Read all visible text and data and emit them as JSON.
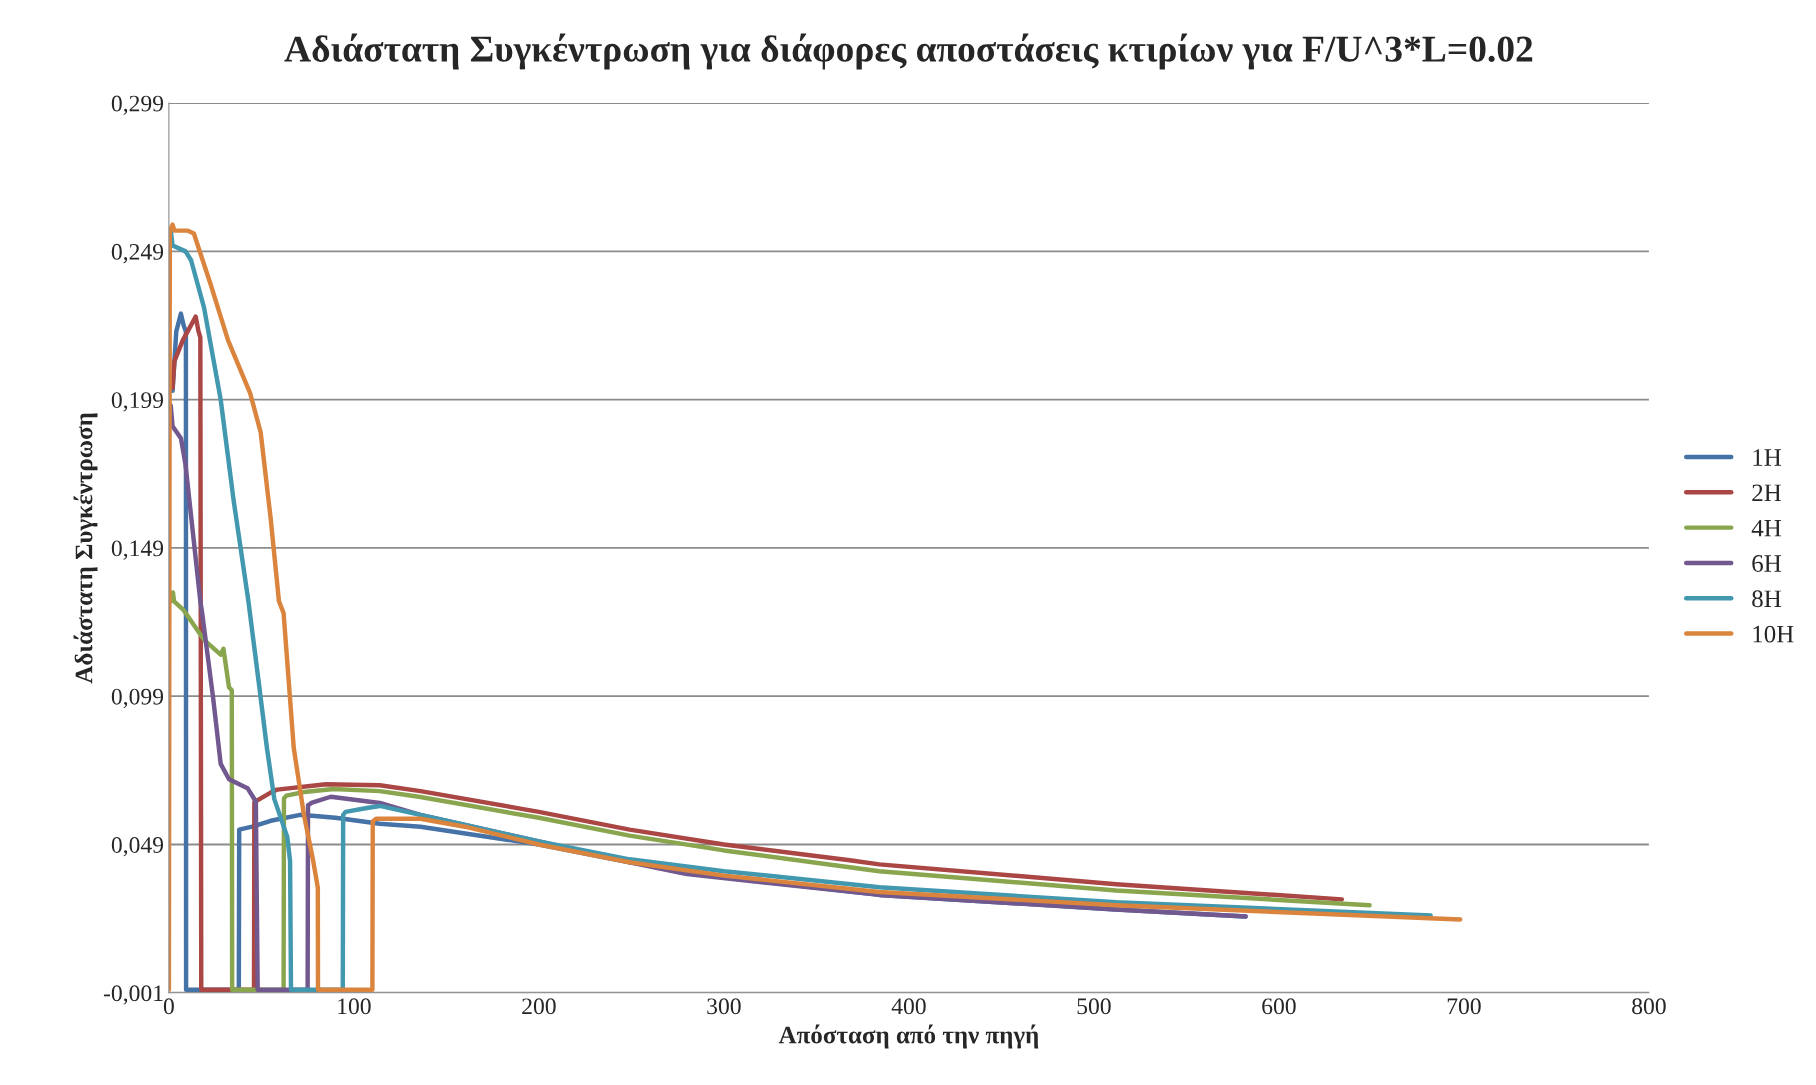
{
  "chart_data": {
    "type": "line",
    "title": "Αδιάστατη Συγκέντρωση για διάφορες αποστάσεις κτιρίων για F/U^3*L=0.02",
    "xlabel": "Απόσταση από την πηγή",
    "ylabel": "Αδιάστατη Συγκέντρωση",
    "xlim": [
      0,
      800
    ],
    "xticks": [
      0,
      100,
      200,
      300,
      400,
      500,
      600,
      700,
      800
    ],
    "ylim": [
      -0.001,
      0.299
    ],
    "yticks": [
      {
        "value": -0.001,
        "label": "-0,001"
      },
      {
        "value": 0.049,
        "label": "0,049"
      },
      {
        "value": 0.099,
        "label": "0,099"
      },
      {
        "value": 0.149,
        "label": "0,149"
      },
      {
        "value": 0.199,
        "label": "0,199"
      },
      {
        "value": 0.249,
        "label": "0,249"
      },
      {
        "value": 0.299,
        "label": "0,299"
      }
    ],
    "grid": "y",
    "legend": "right",
    "marker": "none",
    "line_style": "solid",
    "series": [
      {
        "name": "1H",
        "color": "#4572a7",
        "x": [
          2,
          4,
          6.5,
          8,
          9.2,
          9.3,
          37.8,
          38,
          45,
          55,
          71,
          90,
          114,
          136,
          200,
          249,
          300,
          384,
          512,
          582
        ],
        "values": [
          0.202,
          0.222,
          0.228,
          0.224,
          0.222,
          0,
          0,
          0.054,
          0.055,
          0.057,
          0.059,
          0.058,
          0.056,
          0.055,
          0.049,
          0.043,
          0.038,
          0.032,
          0.0271,
          0.0247
        ]
      },
      {
        "name": "2H",
        "color": "#aa4643",
        "x": [
          2,
          3,
          7.5,
          14.5,
          16,
          17,
          17.5,
          46,
          46.2,
          55,
          58.5,
          80,
          85,
          114,
          136,
          200,
          249,
          300,
          368,
          384,
          512,
          634
        ],
        "values": [
          0.203,
          0.212,
          0.219,
          0.227,
          0.222,
          0.22,
          0,
          0,
          0.0633,
          0.0665,
          0.0675,
          0.069,
          0.0693,
          0.069,
          0.067,
          0.06,
          0.054,
          0.049,
          0.0437,
          0.0423,
          0.0356,
          0.0305
        ]
      },
      {
        "name": "4H",
        "color": "#89a54e",
        "x": [
          1,
          2.2,
          2.8,
          8,
          19,
          28,
          29.5,
          32.5,
          34,
          34.2,
          62,
          62.2,
          63.5,
          73,
          89,
          114,
          136,
          200,
          249,
          300,
          384,
          512,
          649
        ],
        "values": [
          0.131,
          0.134,
          0.131,
          0.128,
          0.118,
          0.113,
          0.115,
          0.102,
          0.101,
          0,
          0,
          0.0645,
          0.0655,
          0.0667,
          0.0677,
          0.067,
          0.065,
          0.058,
          0.052,
          0.047,
          0.04,
          0.0335,
          0.0285
        ]
      },
      {
        "name": "6H",
        "color": "#71588f",
        "x": [
          1,
          2,
          6.5,
          9,
          17,
          18,
          24,
          28,
          32.5,
          42.5,
          47,
          48,
          75,
          75.2,
          77,
          87.5,
          114,
          136,
          200,
          249,
          280,
          384,
          512,
          582
        ],
        "values": [
          0.197,
          0.19,
          0.186,
          0.177,
          0.131,
          0.127,
          0.098,
          0.0762,
          0.071,
          0.068,
          0.0635,
          0,
          0,
          0.0622,
          0.063,
          0.0651,
          0.063,
          0.059,
          0.05,
          0.043,
          0.039,
          0.032,
          0.0271,
          0.0247
        ]
      },
      {
        "name": "8H",
        "color": "#4198af",
        "x": [
          1,
          2,
          9,
          12,
          19,
          28,
          35,
          43,
          48.5,
          53,
          57,
          64,
          65.5,
          66,
          94,
          94.2,
          95.5,
          107,
          114,
          136,
          200,
          249,
          300,
          384,
          512,
          682
        ],
        "values": [
          0.256,
          0.251,
          0.249,
          0.246,
          0.23,
          0.199,
          0.165,
          0.131,
          0.104,
          0.0815,
          0.0643,
          0.0515,
          0.0435,
          0,
          0,
          0.059,
          0.06,
          0.0613,
          0.062,
          0.059,
          0.05,
          0.044,
          0.04,
          0.0346,
          0.0295,
          0.0251
        ]
      },
      {
        "name": "10H",
        "color": "#db843d",
        "x": [
          0,
          0.5,
          2,
          3,
          10,
          13.5,
          22.5,
          32,
          44,
          49.6,
          55,
          59.5,
          62,
          67.5,
          73,
          78,
          80.5,
          80.6,
          110,
          110.2,
          112,
          136,
          160,
          200,
          249,
          300,
          384,
          512,
          698
        ],
        "values": [
          0,
          0.256,
          0.258,
          0.256,
          0.256,
          0.255,
          0.238,
          0.219,
          0.201,
          0.188,
          0.159,
          0.131,
          0.127,
          0.0815,
          0.059,
          0.0435,
          0.0344,
          0,
          0,
          0.0568,
          0.0577,
          0.0577,
          0.055,
          0.049,
          0.043,
          0.0385,
          0.033,
          0.0285,
          0.0237
        ]
      }
    ]
  }
}
